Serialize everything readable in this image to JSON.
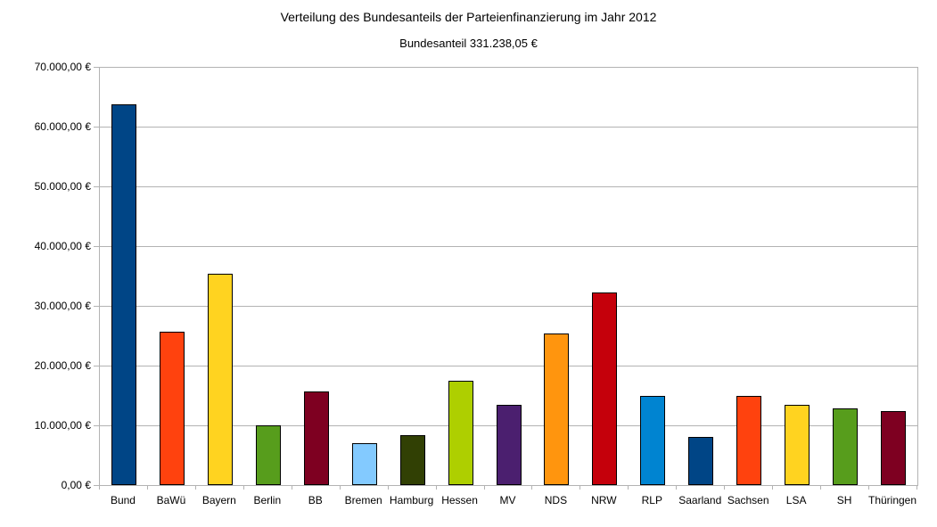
{
  "chart_data": {
    "type": "bar",
    "title": "Verteilung des Bundesanteils der Parteienfinanzierung im Jahr 2012",
    "subtitle": "Bundesanteil 331.238,05 €",
    "unit": "EUR",
    "categories": [
      "Bund",
      "BaWü",
      "Bayern",
      "Berlin",
      "BB",
      "Bremen",
      "Hamburg",
      "Hessen",
      "MV",
      "NDS",
      "NRW",
      "RLP",
      "Saarland",
      "Sachsen",
      "LSA",
      "SH",
      "Thüringen"
    ],
    "values": [
      63700,
      25600,
      35400,
      10000,
      15600,
      7000,
      8300,
      17400,
      13400,
      25400,
      32300,
      15000,
      8000,
      14900,
      13500,
      12900,
      12400
    ],
    "bar_colors": [
      "#004586",
      "#ff420e",
      "#ffd320",
      "#579d1c",
      "#7e0021",
      "#83caff",
      "#314004",
      "#aecf00",
      "#4b1f6f",
      "#ff950e",
      "#c5000b",
      "#0084d1",
      "#004586",
      "#ff420e",
      "#ffd320",
      "#579d1c",
      "#7e0021"
    ],
    "ylim": [
      0,
      70000
    ],
    "ytick_interval": 10000,
    "ytick_labels": [
      "0,00 €",
      "10.000,00 €",
      "20.000,00 €",
      "30.000,00 €",
      "40.000,00 €",
      "50.000,00 €",
      "60.000,00 €",
      "70.000,00 €"
    ],
    "grid": "horizontal",
    "legend": "none",
    "colors": {
      "axis": "#b3b3b3",
      "gridline": "#b3b3b3",
      "bar_outline": "#000000",
      "text": "#000000",
      "background": "#ffffff"
    }
  }
}
